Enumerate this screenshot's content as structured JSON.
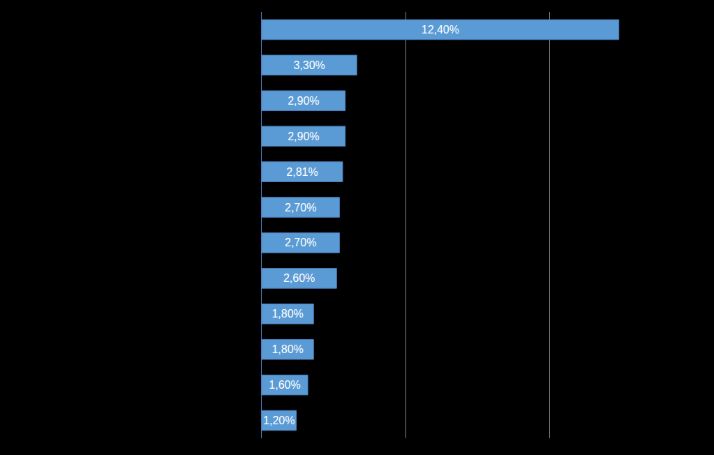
{
  "chart_data": {
    "type": "bar",
    "orientation": "horizontal",
    "categories": [
      null,
      null,
      null,
      null,
      null,
      null,
      null,
      null,
      null,
      null,
      null,
      null
    ],
    "values": [
      12.4,
      3.3,
      2.9,
      2.9,
      2.81,
      2.7,
      2.7,
      2.6,
      1.8,
      1.8,
      1.6,
      1.2
    ],
    "value_labels": [
      "12,40%",
      "3,30%",
      "2,90%",
      "2,90%",
      "2,81%",
      "2,70%",
      "2,70%",
      "2,60%",
      "1,80%",
      "1,80%",
      "1,60%",
      "1,20%"
    ],
    "color": "#5b9bd5",
    "xlim": [
      0,
      15
    ],
    "xticks": [
      0,
      5,
      10,
      15
    ],
    "grid": true,
    "data_labels": true,
    "tick_labels": false
  }
}
